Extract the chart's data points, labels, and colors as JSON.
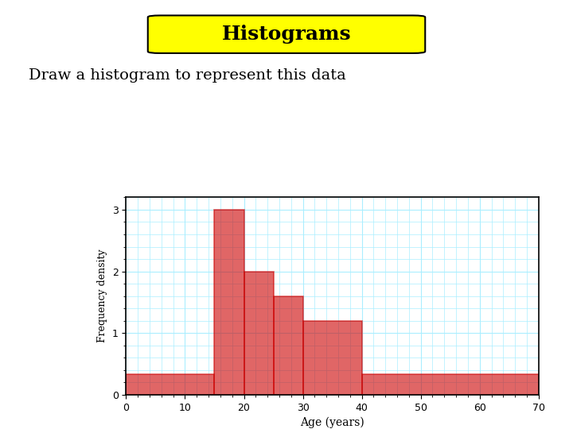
{
  "title": "Histograms",
  "subtitle": "Draw a histogram to represent this data",
  "bins": [
    0,
    15,
    20,
    25,
    30,
    40,
    70
  ],
  "freq_densities": [
    0.3333,
    3.0,
    2.0,
    1.6,
    1.2,
    0.3333
  ],
  "bar_color": "#cc0000",
  "bar_edge_color": "#cc0000",
  "bar_fill_alpha": 0.6,
  "grid_color": "#aaeeff",
  "xlabel": "Age (years)",
  "ylabel": "Frequency density",
  "xlim": [
    0,
    70
  ],
  "ylim": [
    0,
    3.2
  ],
  "xticks": [
    0,
    10,
    20,
    30,
    40,
    50,
    60,
    70
  ],
  "yticks": [
    0,
    1,
    2,
    3
  ],
  "title_bg_color": "#ffff00",
  "title_fontsize": 18,
  "subtitle_fontsize": 14
}
